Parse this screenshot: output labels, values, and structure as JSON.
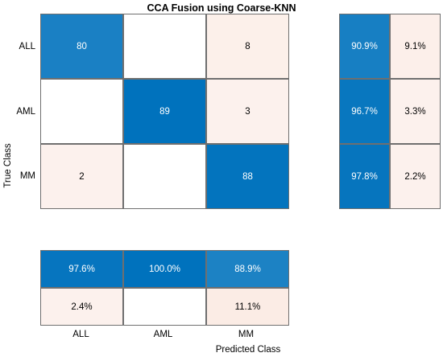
{
  "chart_data": {
    "type": "heatmap",
    "title": "CCA Fusion using Coarse-KNN",
    "xlabel": "Predicted Class",
    "ylabel": "True Class",
    "classes": [
      "ALL",
      "AML",
      "MM"
    ],
    "matrix": [
      [
        80,
        0,
        8
      ],
      [
        0,
        89,
        3
      ],
      [
        2,
        0,
        88
      ]
    ],
    "row_summary": {
      "rows": [
        [
          "90.9%",
          "9.1%"
        ],
        [
          "96.7%",
          "3.3%"
        ],
        [
          "97.8%",
          "2.2%"
        ]
      ],
      "values": [
        [
          90.9,
          9.1
        ],
        [
          96.7,
          3.3
        ],
        [
          97.8,
          2.2
        ]
      ]
    },
    "column_summary": {
      "rows": [
        [
          "97.6%",
          "100.0%",
          "88.9%"
        ],
        [
          "2.4%",
          "",
          "11.1%"
        ]
      ],
      "values": [
        [
          97.6,
          100.0,
          88.9
        ],
        [
          2.4,
          0.0,
          11.1
        ]
      ]
    },
    "colors": {
      "correct": "#0072bd",
      "incorrect": "#d95319",
      "empty": "#ffffff"
    }
  }
}
